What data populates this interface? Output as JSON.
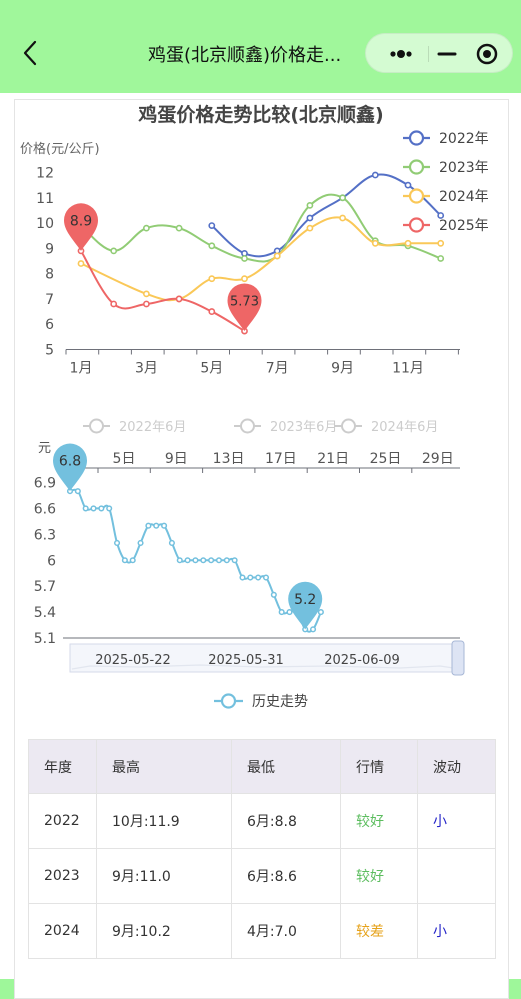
{
  "header": {
    "title": "鸡蛋(北京顺鑫)价格走...",
    "back_icon": "chevron-left-icon",
    "more_icon": "more-dots-icon",
    "minimize_icon": "minus-icon",
    "close_icon": "target-close-icon"
  },
  "chart_data": [
    {
      "type": "line",
      "title": "鸡蛋价格走势比较(北京顺鑫)",
      "ylabel": "价格(元/公斤)",
      "xlabel": "",
      "ylim": [
        5,
        12
      ],
      "y_ticks": [
        "5",
        "6",
        "7",
        "8",
        "9",
        "10",
        "11",
        "12"
      ],
      "x_ticks": [
        "1月",
        "3月",
        "5月",
        "7月",
        "9月",
        "11月"
      ],
      "legend_position": "top-right",
      "grid": false,
      "series": [
        {
          "name": "2022年",
          "color": "#5470c6",
          "x": [
            5,
            6,
            7,
            8,
            9,
            10,
            11,
            12
          ],
          "values": [
            9.9,
            8.8,
            8.9,
            10.2,
            11.0,
            11.9,
            11.5,
            10.3
          ]
        },
        {
          "name": "2023年",
          "color": "#91cc75",
          "x": [
            1,
            2,
            3,
            4,
            5,
            6,
            7,
            8,
            9,
            10,
            11,
            12
          ],
          "values": [
            9.9,
            8.9,
            9.8,
            9.8,
            9.1,
            8.6,
            8.7,
            10.7,
            11.0,
            9.3,
            9.1,
            8.6
          ]
        },
        {
          "name": "2024年",
          "color": "#fac858",
          "x": [
            1,
            3,
            4,
            5,
            6,
            7,
            8,
            9,
            10,
            11,
            12
          ],
          "values": [
            8.4,
            7.2,
            7.0,
            7.8,
            7.8,
            8.7,
            9.8,
            10.2,
            9.2,
            9.2,
            9.2
          ]
        },
        {
          "name": "2025年",
          "color": "#ee6666",
          "x": [
            1,
            2,
            3,
            4,
            5,
            6
          ],
          "values": [
            8.9,
            6.8,
            6.8,
            7.0,
            6.5,
            5.73
          ]
        }
      ],
      "annotations": [
        {
          "label": "8.9",
          "series": "2025年",
          "x": 1,
          "y": 8.9
        },
        {
          "label": "5.73",
          "series": "2025年",
          "x": 6,
          "y": 5.73
        }
      ]
    },
    {
      "type": "line",
      "ylabel": "元",
      "ylim": [
        5.1,
        6.9
      ],
      "y_ticks": [
        "5.1",
        "5.4",
        "5.7",
        "6",
        "6.3",
        "6.6",
        "6.9"
      ],
      "x_ticks": [
        "5日",
        "9日",
        "13日",
        "17日",
        "21日",
        "25日",
        "29日"
      ],
      "toggles": [
        "2022年6月",
        "2023年6月",
        "2024年6月"
      ],
      "slider_labels": [
        "2025-05-22",
        "2025-05-31",
        "2025-06-09"
      ],
      "legend_position": "bottom-center",
      "series": [
        {
          "name": "历史走势",
          "color": "#73c0de",
          "values": [
            6.8,
            6.8,
            6.6,
            6.6,
            6.6,
            6.6,
            6.2,
            6.0,
            6.0,
            6.2,
            6.4,
            6.4,
            6.4,
            6.2,
            6.0,
            6.0,
            6.0,
            6.0,
            6.0,
            6.0,
            6.0,
            6.0,
            5.8,
            5.8,
            5.8,
            5.8,
            5.6,
            5.4,
            5.4,
            5.4,
            5.2,
            5.2,
            5.4
          ]
        }
      ],
      "annotations": [
        {
          "label": "6.8",
          "index": 0,
          "y": 6.8
        },
        {
          "label": "5.2",
          "index": 30,
          "y": 5.2
        }
      ]
    }
  ],
  "table": {
    "headers": [
      "年度",
      "最高",
      "最低",
      "行情",
      "波动"
    ],
    "rows": [
      {
        "year": "2022",
        "high": "10月:11.9",
        "low": "6月:8.8",
        "trend": "较好",
        "vol": "小",
        "trend_color": "#5cbd5f"
      },
      {
        "year": "2023",
        "high": "9月:11.0",
        "low": "6月:8.6",
        "trend": "较好",
        "vol": "",
        "trend_color": "#5cbd5f"
      },
      {
        "year": "2024",
        "high": "9月:10.2",
        "low": "4月:7.0",
        "trend": "较差",
        "vol": "小",
        "trend_color": "#e6a21a"
      }
    ]
  }
}
